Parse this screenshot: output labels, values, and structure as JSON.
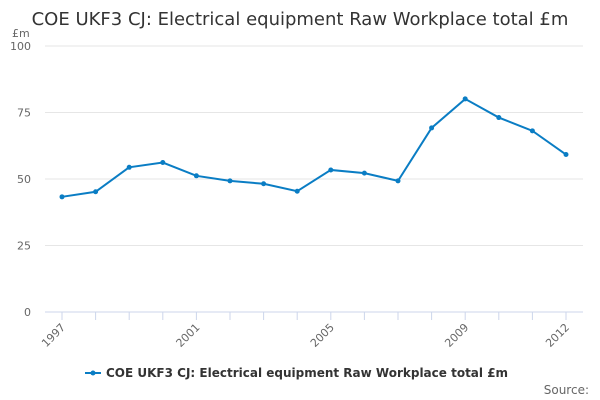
{
  "chart_data": {
    "type": "line",
    "title": "COE UKF3 CJ: Electrical equipment Raw Workplace total £m",
    "ylabel": "£m",
    "xlabel": "",
    "ylim": [
      0,
      100
    ],
    "yticks": [
      0,
      25,
      50,
      75,
      100
    ],
    "xtick_labels": [
      "1997",
      "2001",
      "2005",
      "2009",
      "2012"
    ],
    "x": [
      1997,
      1998,
      1999,
      2000,
      2001,
      2002,
      2003,
      2004,
      2005,
      2006,
      2007,
      2008,
      2009,
      2010,
      2011,
      2012
    ],
    "series": [
      {
        "name": "COE UKF3 CJ: Electrical equipment Raw Workplace total £m",
        "color": "#0a7dc4",
        "values": [
          43.3,
          45.2,
          54.4,
          56.2,
          51.2,
          49.3,
          48.2,
          45.4,
          53.4,
          52.2,
          49.3,
          69.2,
          80.1,
          73.1,
          68.1,
          59.2
        ]
      }
    ],
    "grid": true,
    "legend_position": "bottom"
  },
  "source_label": "Source:"
}
